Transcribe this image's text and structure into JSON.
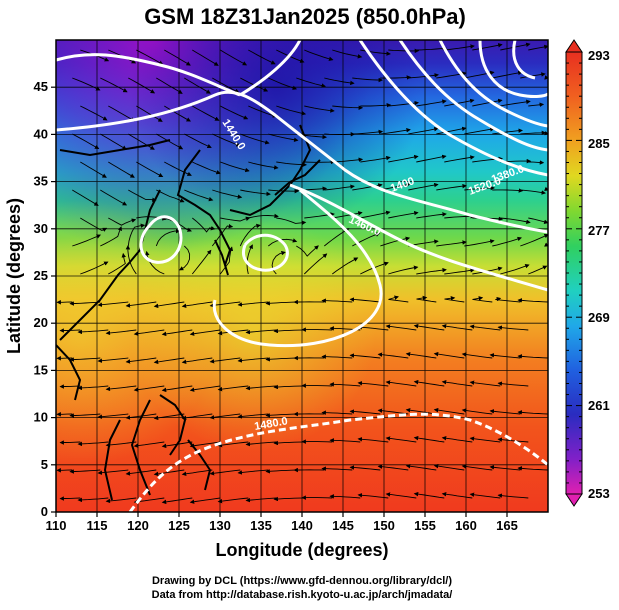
{
  "title": "GSM 18Z31Jan2025 (850.0hPa)",
  "axes": {
    "xlabel": "Longitude (degrees)",
    "ylabel": "Latitude  (degrees)",
    "x_ticks": [
      "110",
      "115",
      "120",
      "125",
      "130",
      "135",
      "140",
      "145",
      "150",
      "155",
      "160",
      "165"
    ],
    "y_ticks": [
      "0",
      "5",
      "10",
      "15",
      "20",
      "25",
      "30",
      "35",
      "40",
      "45"
    ]
  },
  "colorbar": {
    "labels": [
      "293",
      "285",
      "277",
      "269",
      "261",
      "253"
    ]
  },
  "contour_labels": [
    {
      "id": "c1440",
      "text": "1440.0"
    },
    {
      "id": "c1400",
      "text": "1400"
    },
    {
      "id": "c1460",
      "text": "1460.0"
    },
    {
      "id": "c1480",
      "text": "1480.0"
    },
    {
      "id": "c1520",
      "text": "1520.0"
    },
    {
      "id": "c1380",
      "text": "1380.0"
    }
  ],
  "credits": {
    "line1": "Drawing by DCL (https://www.gfd-dennou.org/library/dcl/)",
    "line2": "Data from http://database.rish.kyoto-u.ac.jp/arch/jmadata/"
  }
}
